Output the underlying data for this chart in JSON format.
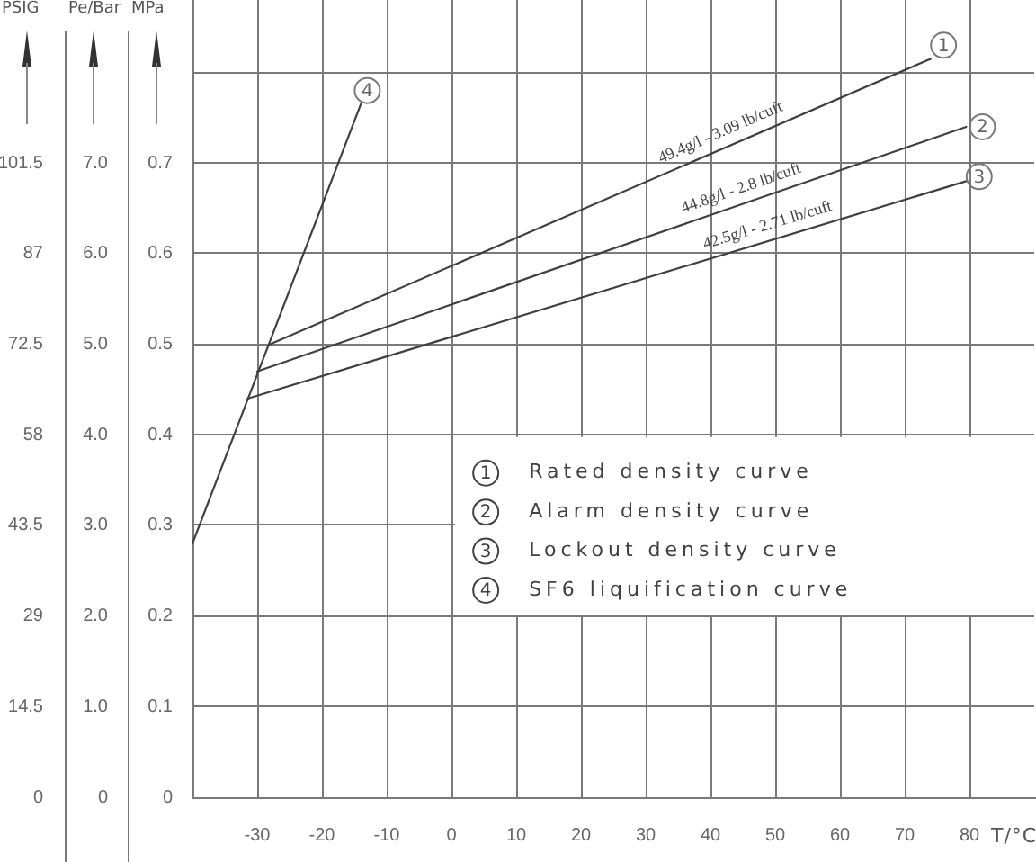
{
  "chart_data": {
    "type": "line",
    "xlabel": "T/°C",
    "ylabel": "MPa",
    "y2label": "Pe/Bar",
    "y3label": "PSIG",
    "xlim": [
      -40,
      90
    ],
    "xticks": [
      -30,
      -20,
      -10,
      0,
      10,
      20,
      30,
      40,
      50,
      60,
      70,
      80
    ],
    "ylim": [
      0,
      0.88
    ],
    "yticks": [
      0,
      0.1,
      0.2,
      0.3,
      0.4,
      0.5,
      0.6,
      0.7,
      {
        "value": 0.8,
        "label": null
      }
    ],
    "y2lim": [
      0,
      8.8
    ],
    "y2ticks": [
      0,
      {
        "value": 1,
        "label": "1.0"
      },
      {
        "value": 2,
        "label": "2.0"
      },
      {
        "value": 3,
        "label": "3.0"
      },
      {
        "value": 4,
        "label": "4.0"
      },
      {
        "value": 5,
        "label": "5.0"
      },
      {
        "value": 6,
        "label": "6.0"
      },
      {
        "value": 7,
        "label": "7.0"
      }
    ],
    "y3lim": [
      0,
      127.6
    ],
    "y3ticks": [
      0,
      14.5,
      29,
      43.5,
      58,
      72.5,
      87,
      101.5
    ],
    "series": [
      {
        "name": "Rated density curve",
        "color": "#404040",
        "x": [
          -28,
          74
        ],
        "values": [
          0.5,
          0.815
        ]
      },
      {
        "name": "Alarm density curve",
        "color": "#404040",
        "x": [
          -30,
          79.5
        ],
        "values": [
          0.47,
          0.74
        ]
      },
      {
        "name": "Lockout density curve",
        "color": "#404040",
        "x": [
          -31.5,
          79.5
        ],
        "values": [
          0.44,
          0.68
        ]
      },
      {
        "name": "SF6 liquification curve",
        "color": "#404040",
        "x": [
          -40,
          -14
        ],
        "values": [
          0.28,
          0.765
        ]
      }
    ],
    "annotations": [
      {
        "text": "1",
        "x": 76,
        "y": 0.83
      },
      {
        "text": "2",
        "x": 82,
        "y": 0.74
      },
      {
        "text": "3",
        "x": 81.5,
        "y": 0.685
      },
      {
        "text": "4",
        "x": -13,
        "y": 0.78
      },
      {
        "text": "49.4g/l - 3.09 lb/cuft",
        "x": 42.5,
        "y": 0.718
      },
      {
        "text": "44.8g/l - 2.8 lb/cuft",
        "x": 45.5,
        "y": 0.656
      },
      {
        "text": "42.5g/l - 2.71 lb/cuft",
        "x": 49.5,
        "y": 0.615
      }
    ],
    "grid": true,
    "legend": "right",
    "marker": "none",
    "line_style": "solid"
  }
}
